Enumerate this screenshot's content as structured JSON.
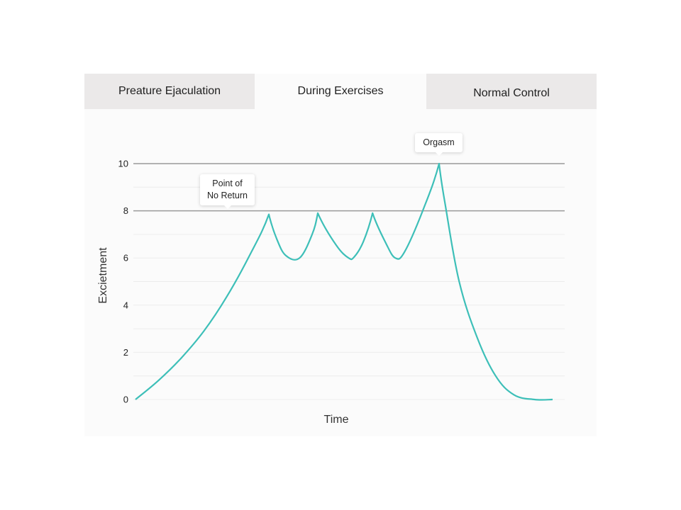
{
  "tabs": [
    {
      "label": "Preature Ejaculation",
      "active": false
    },
    {
      "label": "During Exercises",
      "active": true
    },
    {
      "label": "Normal Control",
      "active": false
    }
  ],
  "chart_data": {
    "type": "line",
    "ylabel": "Excietment",
    "xlabel": "Time",
    "ylim": [
      0,
      10
    ],
    "yticks": [
      "0",
      "2",
      "4",
      "6",
      "8",
      "10"
    ],
    "grid": true,
    "x": [
      0,
      10,
      20,
      30,
      40,
      50,
      58.5,
      62,
      66,
      72,
      77.5,
      80,
      88,
      93.5,
      96,
      100,
      104,
      110,
      114,
      118,
      126,
      133.2,
      136,
      142,
      150,
      158,
      166,
      175,
      183
    ],
    "series": [
      {
        "color": "#3dbfb8",
        "values": [
          0,
          0.8,
          1.75,
          2.9,
          4.35,
          6.1,
          7.85,
          6.8,
          6.1,
          6.0,
          7.0,
          7.9,
          6.55,
          6.0,
          6.05,
          6.7,
          7.9,
          6.6,
          6.0,
          6.25,
          8.0,
          10.0,
          8.2,
          5.0,
          2.6,
          1.0,
          0.2,
          0.0,
          0.0
        ]
      }
    ],
    "reference_lines": [
      8,
      10
    ],
    "annotations": [
      {
        "text": "Point of No Return",
        "line1": "Point of",
        "line2": "No Return",
        "y": 8
      },
      {
        "text": "Orgasm",
        "y": 10
      }
    ]
  }
}
